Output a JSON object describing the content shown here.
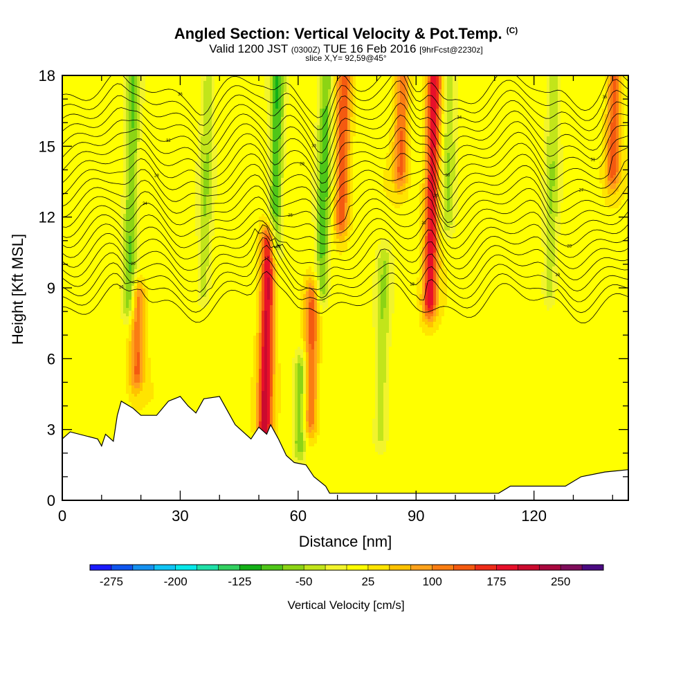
{
  "header": {
    "title": "Angled Section: Vertical Velocity & Pot.Temp.",
    "title_units": "(C)",
    "valid_prefix": "Valid 1200 JST",
    "valid_zulu": "(0300Z)",
    "valid_date": "TUE 16 Feb 2016",
    "forecast": "[9hrFcst@2230z]",
    "slice": "slice X,Y= 92,59@45°"
  },
  "chart_data": {
    "type": "heatmap",
    "title": "Angled Section: Vertical Velocity & Pot.Temp.",
    "xlabel": "Distance [nm]",
    "ylabel": "Height [Kft MSL]",
    "xlim": [
      0,
      144
    ],
    "ylim": [
      0,
      18
    ],
    "x_ticks": [
      "0",
      "30",
      "60",
      "90",
      "120"
    ],
    "x_tick_values": [
      0,
      30,
      60,
      90,
      120
    ],
    "x_minor_step": 10,
    "y_ticks": [
      "0",
      "3",
      "6",
      "9",
      "12",
      "15",
      "18"
    ],
    "y_tick_values": [
      0,
      3,
      6,
      9,
      12,
      15,
      18
    ],
    "y_minor_step": 1,
    "colorbar": {
      "title": "Vertical Velocity [cm/s]",
      "min": -300,
      "max": 300,
      "step": 25,
      "tick_labels": [
        "-275",
        "-200",
        "-125",
        "-50",
        "25",
        "100",
        "175",
        "250"
      ],
      "tick_values": [
        -275,
        -200,
        -125,
        -50,
        25,
        100,
        175,
        250
      ],
      "colors": [
        "#1a1aff",
        "#0f55ee",
        "#1591f0",
        "#10c4f5",
        "#07e8ea",
        "#1fe0a8",
        "#32d060",
        "#13b017",
        "#4fc618",
        "#8cd414",
        "#c2e51a",
        "#f2f42c",
        "#ffff00",
        "#ffe400",
        "#ffc200",
        "#ffa21b",
        "#fa7d12",
        "#f45a10",
        "#ee2c18",
        "#e7102a",
        "#cb0a2e",
        "#a9083e",
        "#7f0d5b",
        "#4a0a82"
      ]
    },
    "vertical_velocity_features": [
      {
        "x": 17.0,
        "y_bottom": 8.5,
        "y_top": 18,
        "value": -90
      },
      {
        "x": 19.0,
        "y_bottom": 5.5,
        "y_top": 8.5,
        "value": 110
      },
      {
        "x": 36.0,
        "y_bottom": 9.0,
        "y_top": 18,
        "value": -60
      },
      {
        "x": 51.5,
        "y_bottom": 3.0,
        "y_top": 10.8,
        "value": 200
      },
      {
        "x": 54.0,
        "y_bottom": 11.0,
        "y_top": 18,
        "value": -110
      },
      {
        "x": 60.5,
        "y_bottom": 2.5,
        "y_top": 5.5,
        "value": -90
      },
      {
        "x": 63.0,
        "y_bottom": 3.5,
        "y_top": 8.5,
        "value": 120
      },
      {
        "x": 66.0,
        "y_bottom": 9.0,
        "y_top": 18,
        "value": -100
      },
      {
        "x": 71.0,
        "y_bottom": 12.0,
        "y_top": 18,
        "value": 130
      },
      {
        "x": 81.0,
        "y_bottom": 3.0,
        "y_top": 10.0,
        "value": -60
      },
      {
        "x": 86.0,
        "y_bottom": 14.0,
        "y_top": 18,
        "value": 110
      },
      {
        "x": 93.5,
        "y_bottom": 8.5,
        "y_top": 18,
        "value": 175
      },
      {
        "x": 98.0,
        "y_bottom": 12.0,
        "y_top": 18,
        "value": -60
      },
      {
        "x": 124.0,
        "y_bottom": 9.0,
        "y_top": 18,
        "value": -60
      },
      {
        "x": 140.0,
        "y_bottom": 14.0,
        "y_top": 18,
        "value": 120
      }
    ],
    "theta_levels": [
      {
        "value": "16",
        "base_height": 8.4
      },
      {
        "value": "17",
        "base_height": 8.85
      },
      {
        "value": "18",
        "base_height": 9.3
      },
      {
        "value": "19",
        "base_height": 9.75
      },
      {
        "value": "20",
        "base_height": 10.2
      },
      {
        "value": "21",
        "base_height": 10.65
      },
      {
        "value": "22",
        "base_height": 11.1
      },
      {
        "value": "23",
        "base_height": 11.55
      },
      {
        "value": "24",
        "base_height": 12.0
      },
      {
        "value": "25",
        "base_height": 12.45
      },
      {
        "value": "26",
        "base_height": 12.9
      },
      {
        "value": "27",
        "base_height": 13.35
      },
      {
        "value": "28",
        "base_height": 13.8
      },
      {
        "value": "29",
        "base_height": 14.25
      },
      {
        "value": "30",
        "base_height": 14.7
      },
      {
        "value": "31",
        "base_height": 15.15
      },
      {
        "value": "32",
        "base_height": 15.6
      },
      {
        "value": "33",
        "base_height": 16.05
      },
      {
        "value": "34",
        "base_height": 16.5
      },
      {
        "value": "35",
        "base_height": 16.95
      },
      {
        "value": "36",
        "base_height": 17.4
      }
    ],
    "terrain": [
      [
        0,
        2.6
      ],
      [
        2,
        2.9
      ],
      [
        9,
        2.6
      ],
      [
        10,
        2.3
      ],
      [
        11,
        2.8
      ],
      [
        13,
        2.5
      ],
      [
        14,
        3.6
      ],
      [
        15,
        4.2
      ],
      [
        18,
        3.9
      ],
      [
        20,
        3.6
      ],
      [
        24,
        3.6
      ],
      [
        27,
        4.2
      ],
      [
        30,
        4.4
      ],
      [
        32,
        4.0
      ],
      [
        34,
        3.7
      ],
      [
        36,
        4.3
      ],
      [
        40,
        4.4
      ],
      [
        42,
        3.8
      ],
      [
        44,
        3.2
      ],
      [
        46,
        2.9
      ],
      [
        48,
        2.6
      ],
      [
        50,
        3.1
      ],
      [
        52,
        2.8
      ],
      [
        53,
        3.2
      ],
      [
        55,
        2.6
      ],
      [
        57,
        1.9
      ],
      [
        59,
        1.6
      ],
      [
        62,
        1.5
      ],
      [
        64,
        1.0
      ],
      [
        67,
        0.6
      ],
      [
        68,
        0.3
      ],
      [
        80,
        0.3
      ],
      [
        95,
        0.3
      ],
      [
        111,
        0.3
      ],
      [
        114,
        0.6
      ],
      [
        128,
        0.6
      ],
      [
        132,
        1.0
      ],
      [
        138,
        1.2
      ],
      [
        144,
        1.3
      ]
    ]
  }
}
